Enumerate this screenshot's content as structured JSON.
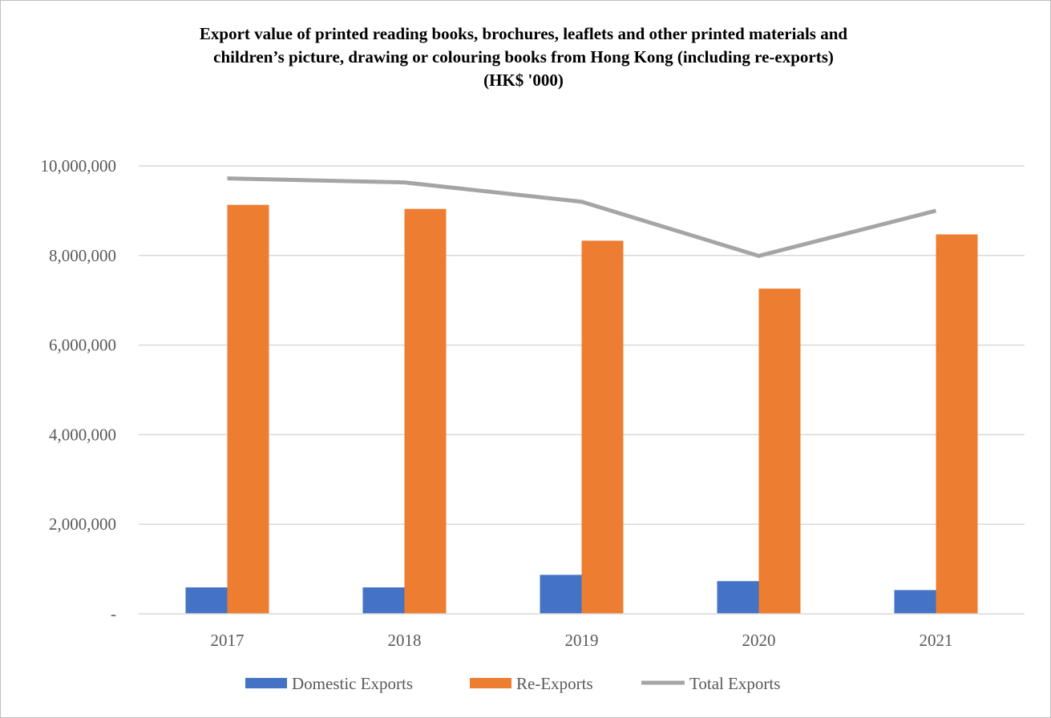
{
  "chart_data": {
    "type": "bar",
    "title_lines": [
      "Export value of printed reading books, brochures, leaflets and other printed materials and",
      "children’s picture, drawing or colouring books from Hong Kong (including re-exports)",
      "(HK$ '000)"
    ],
    "categories": [
      "2017",
      "2018",
      "2019",
      "2020",
      "2021"
    ],
    "series": [
      {
        "name": "Domestic Exports",
        "type": "bar",
        "color": "#4472c4",
        "values": [
          590000,
          590000,
          870000,
          730000,
          530000
        ]
      },
      {
        "name": "Re-Exports",
        "type": "bar",
        "color": "#ed7d31",
        "values": [
          9130000,
          9040000,
          8330000,
          7260000,
          8470000
        ]
      },
      {
        "name": "Total Exports",
        "type": "line",
        "color": "#a5a5a5",
        "values": [
          9720000,
          9630000,
          9200000,
          7990000,
          9000000
        ]
      }
    ],
    "y_ticks": [
      0,
      2000000,
      4000000,
      6000000,
      8000000,
      10000000
    ],
    "y_tick_labels": [
      "-",
      "2,000,000",
      "4,000,000",
      "6,000,000",
      "8,000,000",
      "10,000,000"
    ],
    "ylim": [
      0,
      10000000
    ],
    "grid": true,
    "legend_position": "bottom",
    "xlabel": "",
    "ylabel": ""
  }
}
